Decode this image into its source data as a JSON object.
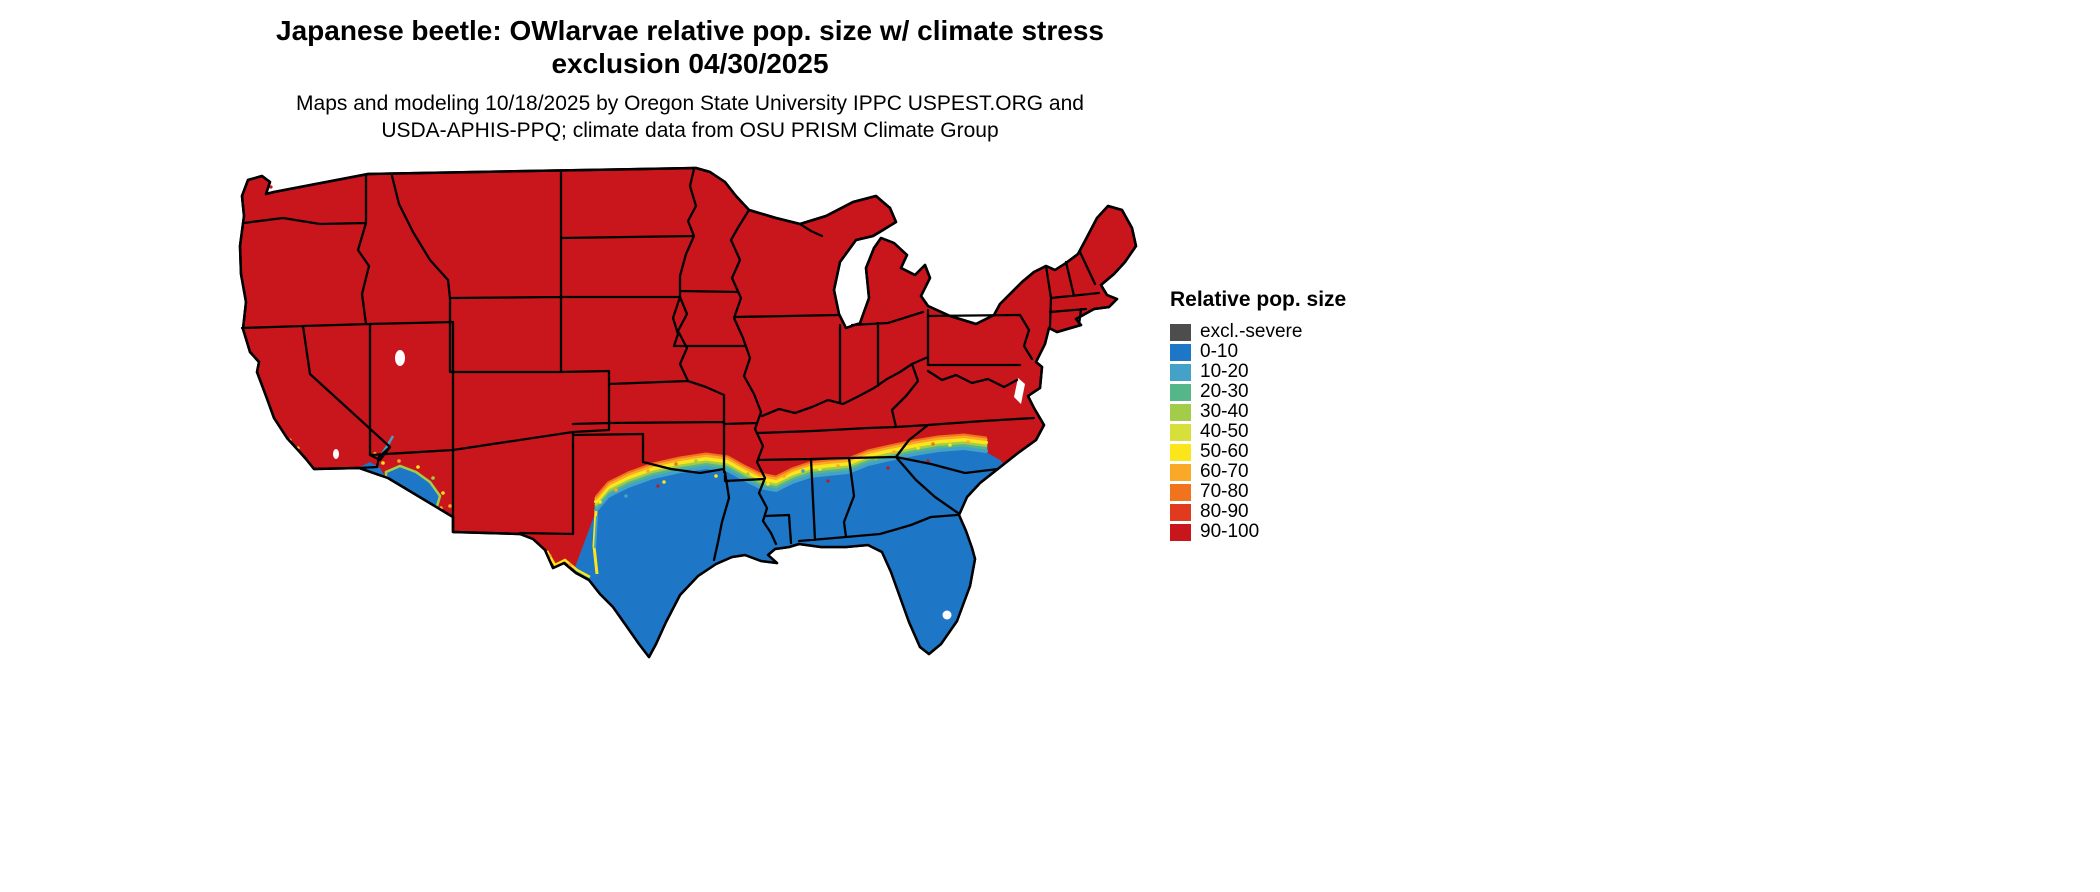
{
  "header": {
    "title_line1": "Japanese beetle: OWlarvae relative pop. size w/ climate stress",
    "title_line2": "exclusion 04/30/2025",
    "subtitle_line1": "Maps and modeling 10/18/2025 by Oregon State University IPPC USPEST.ORG and",
    "subtitle_line2": "USDA-APHIS-PPQ; climate data from OSU PRISM Climate Group"
  },
  "legend": {
    "title": "Relative pop. size",
    "items": [
      {
        "label": "excl.-severe",
        "color": "#4D4D4D"
      },
      {
        "label": "0-10",
        "color": "#1D76C6"
      },
      {
        "label": "10-20",
        "color": "#44A2C8"
      },
      {
        "label": "20-30",
        "color": "#55B789"
      },
      {
        "label": "30-40",
        "color": "#A3CD49"
      },
      {
        "label": "40-50",
        "color": "#D7E03A"
      },
      {
        "label": "50-60",
        "color": "#FBE51B"
      },
      {
        "label": "60-70",
        "color": "#F9A827"
      },
      {
        "label": "70-80",
        "color": "#F1731D"
      },
      {
        "label": "80-90",
        "color": "#E03A1F"
      },
      {
        "label": "90-100",
        "color": "#C9161D"
      }
    ]
  },
  "map": {
    "description": "Contiguous United States",
    "dominant_band": "90-100",
    "low_band": "0-10",
    "boundary_color": "#000000",
    "background_color": "#FFFFFF"
  }
}
